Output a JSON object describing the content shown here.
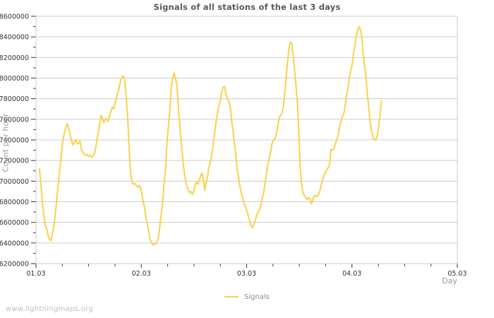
{
  "watermark": {
    "text": "www.lightningmaps.org"
  },
  "chart_data": {
    "type": "line",
    "title": "Signals of all stations of the last 3 days",
    "xlabel": "Day",
    "ylabel": "Count per hour",
    "xlim": [
      0,
      4
    ],
    "ylim": [
      6200000,
      8600000
    ],
    "x_tick_labels": [
      "01.03",
      "02.03",
      "03.03",
      "04.03",
      "05.03"
    ],
    "x_tick_positions": [
      0,
      1,
      2,
      3,
      4
    ],
    "x_minor_step": 0.25,
    "y_major_step": 200000,
    "y_minor_step": 100000,
    "grid": "horizontal-major-only",
    "legend_position": "bottom-center",
    "colors": {
      "background": "#ffffff",
      "line": "#fbd14b",
      "grid": "#cccccc",
      "border": "#cccccc",
      "tick": "#333333",
      "tick_text": "#333333",
      "title_text": "#5a5a5a",
      "axis_label_text": "#9a9a9a",
      "watermark_text": "#bdbdbd"
    },
    "series": [
      {
        "name": "Signals",
        "color": "#fbd14b",
        "points": [
          [
            0.033,
            7120000
          ],
          [
            0.047,
            6960000
          ],
          [
            0.06,
            6790000
          ],
          [
            0.073,
            6680000
          ],
          [
            0.086,
            6580000
          ],
          [
            0.1,
            6540000
          ],
          [
            0.113,
            6480000
          ],
          [
            0.126,
            6440000
          ],
          [
            0.14,
            6420000
          ],
          [
            0.153,
            6480000
          ],
          [
            0.166,
            6540000
          ],
          [
            0.18,
            6650000
          ],
          [
            0.193,
            6780000
          ],
          [
            0.206,
            6920000
          ],
          [
            0.22,
            7060000
          ],
          [
            0.233,
            7180000
          ],
          [
            0.246,
            7320000
          ],
          [
            0.259,
            7420000
          ],
          [
            0.273,
            7480000
          ],
          [
            0.286,
            7530000
          ],
          [
            0.299,
            7560000
          ],
          [
            0.313,
            7500000
          ],
          [
            0.326,
            7440000
          ],
          [
            0.339,
            7390000
          ],
          [
            0.353,
            7350000
          ],
          [
            0.366,
            7380000
          ],
          [
            0.379,
            7400000
          ],
          [
            0.393,
            7360000
          ],
          [
            0.406,
            7370000
          ],
          [
            0.419,
            7390000
          ],
          [
            0.432,
            7300000
          ],
          [
            0.446,
            7280000
          ],
          [
            0.459,
            7260000
          ],
          [
            0.472,
            7250000
          ],
          [
            0.486,
            7260000
          ],
          [
            0.499,
            7240000
          ],
          [
            0.512,
            7250000
          ],
          [
            0.526,
            7230000
          ],
          [
            0.539,
            7240000
          ],
          [
            0.552,
            7260000
          ],
          [
            0.566,
            7320000
          ],
          [
            0.579,
            7400000
          ],
          [
            0.592,
            7480000
          ],
          [
            0.605,
            7560000
          ],
          [
            0.619,
            7640000
          ],
          [
            0.632,
            7600000
          ],
          [
            0.645,
            7570000
          ],
          [
            0.659,
            7600000
          ],
          [
            0.672,
            7610000
          ],
          [
            0.685,
            7580000
          ],
          [
            0.699,
            7630000
          ],
          [
            0.712,
            7680000
          ],
          [
            0.725,
            7720000
          ],
          [
            0.739,
            7700000
          ],
          [
            0.752,
            7760000
          ],
          [
            0.765,
            7820000
          ],
          [
            0.778,
            7860000
          ],
          [
            0.792,
            7920000
          ],
          [
            0.805,
            7980000
          ],
          [
            0.818,
            8020000
          ],
          [
            0.832,
            8020000
          ],
          [
            0.845,
            7950000
          ],
          [
            0.858,
            7800000
          ],
          [
            0.872,
            7600000
          ],
          [
            0.885,
            7300000
          ],
          [
            0.898,
            7090000
          ],
          [
            0.911,
            6990000
          ],
          [
            0.925,
            6970000
          ],
          [
            0.938,
            6980000
          ],
          [
            0.951,
            6960000
          ],
          [
            0.965,
            6940000
          ],
          [
            0.978,
            6960000
          ],
          [
            0.991,
            6940000
          ],
          [
            1.005,
            6880000
          ],
          [
            1.018,
            6800000
          ],
          [
            1.031,
            6740000
          ],
          [
            1.044,
            6640000
          ],
          [
            1.058,
            6580000
          ],
          [
            1.071,
            6510000
          ],
          [
            1.084,
            6430000
          ],
          [
            1.098,
            6400000
          ],
          [
            1.111,
            6380000
          ],
          [
            1.124,
            6390000
          ],
          [
            1.138,
            6390000
          ],
          [
            1.151,
            6420000
          ],
          [
            1.164,
            6460000
          ],
          [
            1.178,
            6580000
          ],
          [
            1.191,
            6700000
          ],
          [
            1.204,
            6810000
          ],
          [
            1.217,
            7000000
          ],
          [
            1.231,
            7120000
          ],
          [
            1.244,
            7390000
          ],
          [
            1.257,
            7530000
          ],
          [
            1.271,
            7690000
          ],
          [
            1.284,
            7900000
          ],
          [
            1.297,
            8000000
          ],
          [
            1.311,
            8050000
          ],
          [
            1.324,
            8000000
          ],
          [
            1.337,
            7940000
          ],
          [
            1.35,
            7750000
          ],
          [
            1.364,
            7550000
          ],
          [
            1.377,
            7400000
          ],
          [
            1.39,
            7250000
          ],
          [
            1.404,
            7120000
          ],
          [
            1.417,
            7020000
          ],
          [
            1.43,
            6960000
          ],
          [
            1.444,
            6920000
          ],
          [
            1.457,
            6890000
          ],
          [
            1.47,
            6900000
          ],
          [
            1.484,
            6870000
          ],
          [
            1.497,
            6900000
          ],
          [
            1.51,
            6960000
          ],
          [
            1.523,
            6990000
          ],
          [
            1.537,
            6970000
          ],
          [
            1.55,
            7010000
          ],
          [
            1.563,
            7050000
          ],
          [
            1.577,
            7080000
          ],
          [
            1.59,
            7000000
          ],
          [
            1.603,
            6910000
          ],
          [
            1.617,
            7000000
          ],
          [
            1.63,
            7050000
          ],
          [
            1.643,
            7140000
          ],
          [
            1.657,
            7190000
          ],
          [
            1.67,
            7260000
          ],
          [
            1.683,
            7360000
          ],
          [
            1.696,
            7460000
          ],
          [
            1.71,
            7580000
          ],
          [
            1.723,
            7660000
          ],
          [
            1.736,
            7730000
          ],
          [
            1.75,
            7780000
          ],
          [
            1.763,
            7860000
          ],
          [
            1.776,
            7910000
          ],
          [
            1.79,
            7920000
          ],
          [
            1.803,
            7850000
          ],
          [
            1.816,
            7800000
          ],
          [
            1.83,
            7780000
          ],
          [
            1.843,
            7730000
          ],
          [
            1.856,
            7600000
          ],
          [
            1.869,
            7500000
          ],
          [
            1.883,
            7380000
          ],
          [
            1.896,
            7260000
          ],
          [
            1.909,
            7120000
          ],
          [
            1.923,
            7040000
          ],
          [
            1.936,
            6950000
          ],
          [
            1.949,
            6880000
          ],
          [
            1.963,
            6840000
          ],
          [
            1.976,
            6780000
          ],
          [
            1.989,
            6750000
          ],
          [
            2.003,
            6710000
          ],
          [
            2.016,
            6660000
          ],
          [
            2.029,
            6610000
          ],
          [
            2.042,
            6570000
          ],
          [
            2.056,
            6550000
          ],
          [
            2.069,
            6580000
          ],
          [
            2.082,
            6620000
          ],
          [
            2.096,
            6670000
          ],
          [
            2.109,
            6700000
          ],
          [
            2.122,
            6720000
          ],
          [
            2.136,
            6770000
          ],
          [
            2.149,
            6830000
          ],
          [
            2.162,
            6890000
          ],
          [
            2.176,
            6990000
          ],
          [
            2.189,
            7080000
          ],
          [
            2.202,
            7160000
          ],
          [
            2.215,
            7220000
          ],
          [
            2.229,
            7290000
          ],
          [
            2.242,
            7370000
          ],
          [
            2.255,
            7400000
          ],
          [
            2.269,
            7410000
          ],
          [
            2.282,
            7460000
          ],
          [
            2.295,
            7530000
          ],
          [
            2.309,
            7610000
          ],
          [
            2.322,
            7640000
          ],
          [
            2.335,
            7660000
          ],
          [
            2.349,
            7720000
          ],
          [
            2.362,
            7850000
          ],
          [
            2.375,
            8010000
          ],
          [
            2.388,
            8150000
          ],
          [
            2.402,
            8290000
          ],
          [
            2.415,
            8350000
          ],
          [
            2.428,
            8340000
          ],
          [
            2.442,
            8220000
          ],
          [
            2.455,
            8080000
          ],
          [
            2.468,
            7940000
          ],
          [
            2.482,
            7760000
          ],
          [
            2.495,
            7480000
          ],
          [
            2.508,
            7120000
          ],
          [
            2.522,
            6970000
          ],
          [
            2.535,
            6890000
          ],
          [
            2.548,
            6860000
          ],
          [
            2.561,
            6840000
          ],
          [
            2.575,
            6820000
          ],
          [
            2.588,
            6840000
          ],
          [
            2.601,
            6830000
          ],
          [
            2.615,
            6780000
          ],
          [
            2.628,
            6820000
          ],
          [
            2.641,
            6860000
          ],
          [
            2.655,
            6860000
          ],
          [
            2.668,
            6850000
          ],
          [
            2.681,
            6870000
          ],
          [
            2.695,
            6900000
          ],
          [
            2.708,
            6970000
          ],
          [
            2.721,
            7010000
          ],
          [
            2.734,
            7050000
          ],
          [
            2.748,
            7090000
          ],
          [
            2.761,
            7110000
          ],
          [
            2.774,
            7130000
          ],
          [
            2.788,
            7170000
          ],
          [
            2.801,
            7310000
          ],
          [
            2.814,
            7300000
          ],
          [
            2.828,
            7310000
          ],
          [
            2.841,
            7360000
          ],
          [
            2.854,
            7400000
          ],
          [
            2.868,
            7440000
          ],
          [
            2.881,
            7520000
          ],
          [
            2.894,
            7570000
          ],
          [
            2.907,
            7620000
          ],
          [
            2.921,
            7650000
          ],
          [
            2.934,
            7720000
          ],
          [
            2.947,
            7820000
          ],
          [
            2.961,
            7900000
          ],
          [
            2.974,
            8000000
          ],
          [
            2.987,
            8060000
          ],
          [
            3.001,
            8130000
          ],
          [
            3.014,
            8230000
          ],
          [
            3.027,
            8310000
          ],
          [
            3.041,
            8410000
          ],
          [
            3.054,
            8470000
          ],
          [
            3.067,
            8500000
          ],
          [
            3.081,
            8470000
          ],
          [
            3.094,
            8390000
          ],
          [
            3.107,
            8230000
          ],
          [
            3.12,
            8110000
          ],
          [
            3.134,
            8000000
          ],
          [
            3.147,
            7830000
          ],
          [
            3.16,
            7710000
          ],
          [
            3.174,
            7560000
          ],
          [
            3.187,
            7480000
          ],
          [
            3.2,
            7420000
          ],
          [
            3.214,
            7400000
          ],
          [
            3.227,
            7400000
          ],
          [
            3.24,
            7440000
          ],
          [
            3.253,
            7530000
          ],
          [
            3.267,
            7650000
          ],
          [
            3.28,
            7780000
          ]
        ]
      }
    ]
  }
}
